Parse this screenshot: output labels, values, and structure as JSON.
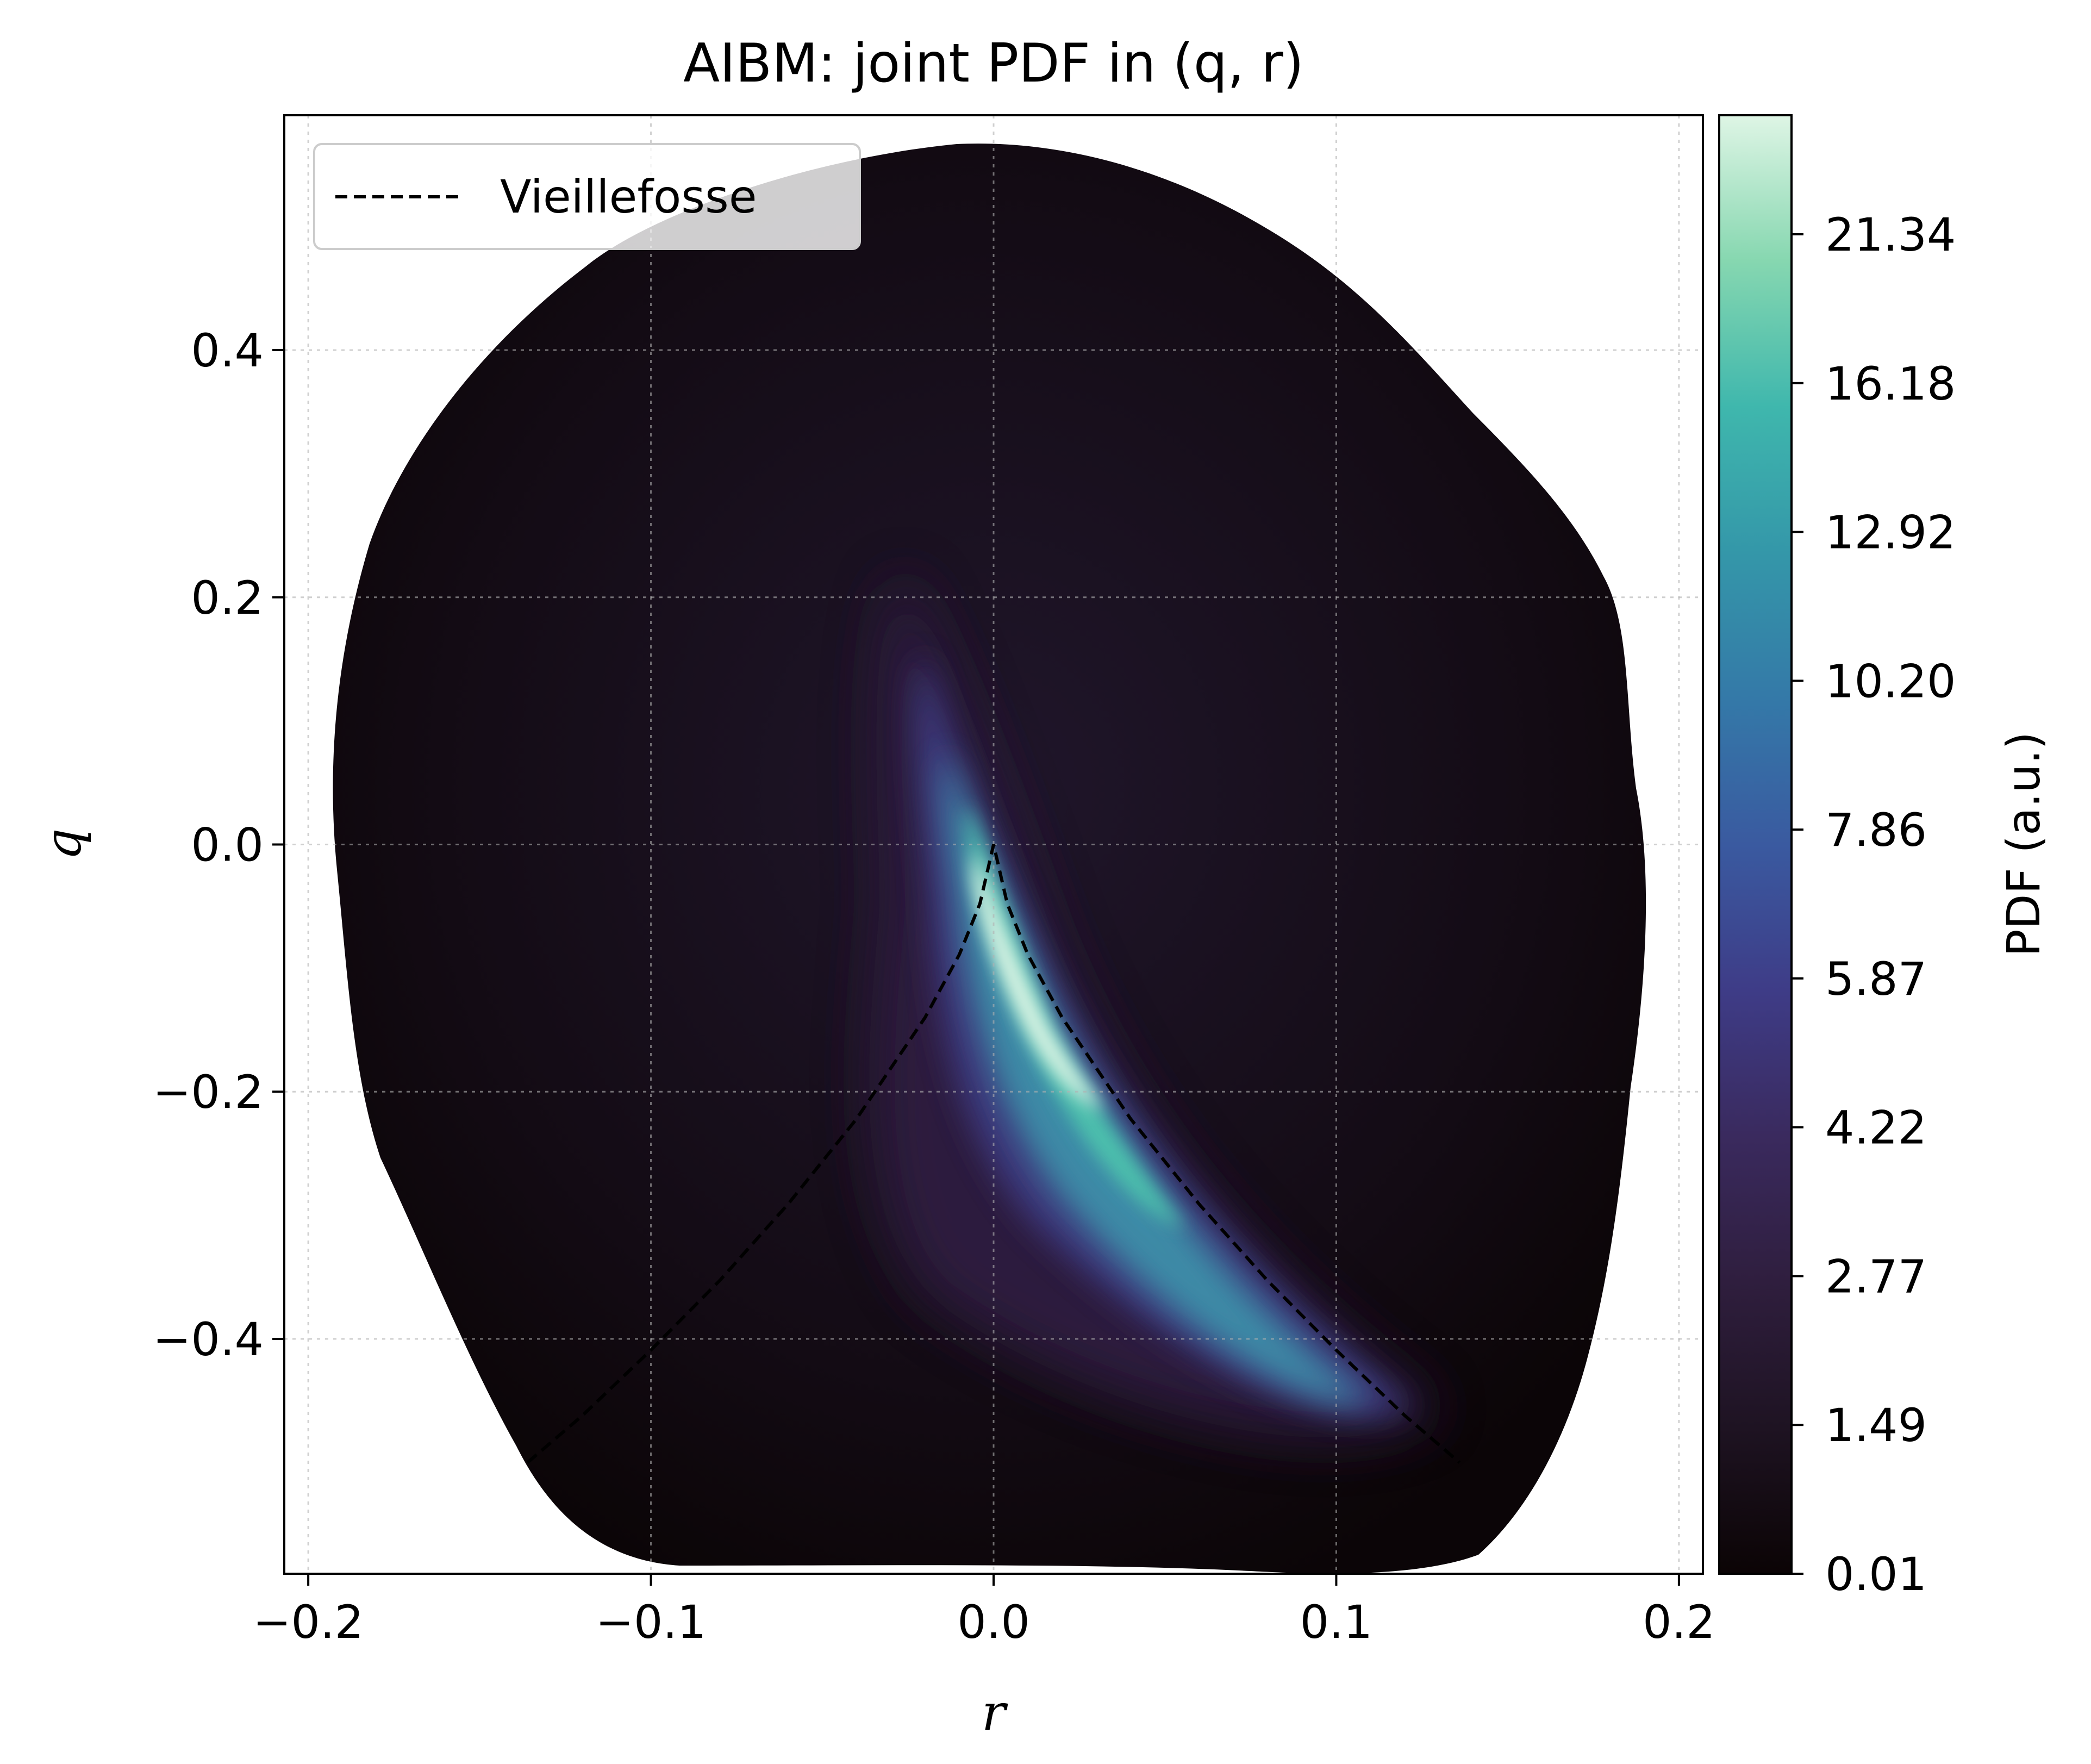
{
  "chart_data": {
    "type": "heatmap",
    "title": "AIBM: joint PDF in (q, r)",
    "xlabel": "r",
    "ylabel": "q",
    "xlim": [
      -0.207,
      0.207
    ],
    "ylim": [
      -0.59,
      0.59
    ],
    "xticks": [
      -0.2,
      -0.1,
      0.0,
      0.1,
      0.2
    ],
    "xtick_labels": [
      "−0.2",
      "−0.1",
      "0.0",
      "0.1",
      "0.2"
    ],
    "yticks": [
      -0.4,
      -0.2,
      0.0,
      0.2,
      0.4
    ],
    "ytick_labels": [
      "−0.4",
      "−0.2",
      "0.0",
      "0.2",
      "0.4"
    ],
    "grid": true,
    "colormap": "mako",
    "colorbar": {
      "label": "PDF (a.u.)",
      "ticks": [
        0.01,
        1.49,
        2.77,
        4.22,
        5.87,
        7.86,
        10.2,
        12.92,
        16.18,
        21.34
      ],
      "tick_labels": [
        "0.01",
        "1.49",
        "2.77",
        "4.22",
        "5.87",
        "7.86",
        "10.20",
        "12.92",
        "16.18",
        "21.34"
      ],
      "colors": [
        "#0b0405",
        "#1e1322",
        "#2f1e3e",
        "#3a2a5e",
        "#3e3c87",
        "#3a5aa0",
        "#3479a8",
        "#3497a9",
        "#3fb7ad",
        "#86d7b0",
        "#def5e5"
      ]
    },
    "legend": {
      "position": "top-left",
      "entries": [
        {
          "name": "Vieillefosse",
          "style": "dashed",
          "color": "#000000"
        }
      ]
    },
    "series": [
      {
        "name": "Vieillefosse",
        "type": "line",
        "style": "dashed",
        "r": [
          -0.136,
          -0.12,
          -0.1,
          -0.08,
          -0.06,
          -0.04,
          -0.02,
          -0.01,
          -0.004,
          0.0,
          0.004,
          0.01,
          0.02,
          0.04,
          0.06,
          0.08,
          0.1,
          0.12,
          0.136
        ],
        "q": [
          -0.5,
          -0.462,
          -0.409,
          -0.353,
          -0.291,
          -0.222,
          -0.14,
          -0.089,
          -0.048,
          0.0,
          -0.048,
          -0.089,
          -0.14,
          -0.222,
          -0.291,
          -0.353,
          -0.409,
          -0.462,
          -0.5
        ]
      }
    ]
  }
}
